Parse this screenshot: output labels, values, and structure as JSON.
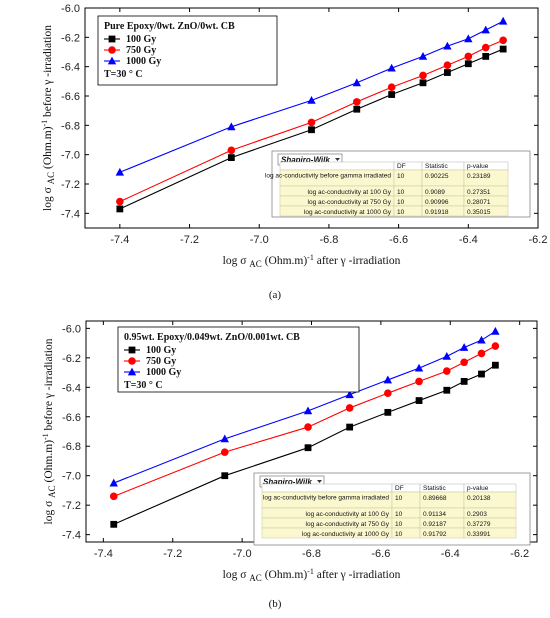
{
  "chart_data": [
    {
      "type": "line",
      "caption": "(a)",
      "xlabel": "log σ AC (Ohm.m)-1 after γ -irradiation",
      "ylabel": "log σ AC (Ohm.m)-1 before γ -irradiation",
      "xlim": [
        -7.5,
        -6.2
      ],
      "ylim": [
        -7.5,
        -6.0
      ],
      "xticks": [
        "-7.4",
        "-7.2",
        "-7.0",
        "-6.8",
        "-6.6",
        "-6.4",
        "-6.2"
      ],
      "yticks": [
        "-6.0",
        "-6.2",
        "-6.4",
        "-6.6",
        "-6.8",
        "-7.0",
        "-7.2",
        "-7.4"
      ],
      "legend": {
        "title": "Pure Epoxy/0wt. ZnO/0wt. CB",
        "note": "T=30 ° C",
        "placement": "top-left"
      },
      "series": [
        {
          "name": "100 Gy",
          "color": "#000000",
          "marker": "square",
          "x": [
            -7.4,
            -7.08,
            -6.85,
            -6.72,
            -6.62,
            -6.53,
            -6.46,
            -6.4,
            -6.35,
            -6.3
          ],
          "y": [
            -7.37,
            -7.02,
            -6.83,
            -6.69,
            -6.59,
            -6.51,
            -6.44,
            -6.38,
            -6.33,
            -6.28
          ]
        },
        {
          "name": "750 Gy",
          "color": "#ff0000",
          "marker": "circle",
          "x": [
            -7.4,
            -7.08,
            -6.85,
            -6.72,
            -6.62,
            -6.53,
            -6.46,
            -6.4,
            -6.35,
            -6.3
          ],
          "y": [
            -7.32,
            -6.97,
            -6.78,
            -6.64,
            -6.54,
            -6.46,
            -6.39,
            -6.33,
            -6.27,
            -6.22
          ]
        },
        {
          "name": "1000 Gy",
          "color": "#0000ff",
          "marker": "triangle",
          "x": [
            -7.4,
            -7.08,
            -6.85,
            -6.72,
            -6.62,
            -6.53,
            -6.46,
            -6.4,
            -6.35,
            -6.3
          ],
          "y": [
            -7.12,
            -6.81,
            -6.63,
            -6.51,
            -6.41,
            -6.33,
            -6.26,
            -6.21,
            -6.15,
            -6.09
          ]
        }
      ],
      "shapiro_wilk": {
        "title": "Shapiro-Wilk",
        "headers": [
          "",
          "DF",
          "Statistic",
          "p-value"
        ],
        "rows": [
          [
            "log ac-conductivity before gamma irradiated",
            "10",
            "0.90225",
            "0.23189"
          ],
          [
            "log ac-conductivity  at 100 Gy",
            "10",
            "0.9089",
            "0.27351"
          ],
          [
            "log ac-conductivity  at 750 Gy",
            "10",
            "0.90996",
            "0.28071"
          ],
          [
            "log ac-conductivity  at 1000 Gy",
            "10",
            "0.91918",
            "0.35015"
          ]
        ]
      }
    },
    {
      "type": "line",
      "caption": "(b)",
      "xlabel": "log σ AC (Ohm.m)-1 after γ -irradiation",
      "ylabel": "log σ AC (Ohm.m)-1 before γ -irradiation",
      "xlim": [
        -7.45,
        -6.15
      ],
      "ylim": [
        -7.45,
        -5.95
      ],
      "xticks": [
        "-7.4",
        "-7.2",
        "-7.0",
        "-6.8",
        "-6.6",
        "-6.4",
        "-6.2"
      ],
      "yticks": [
        "-6.0",
        "-6.2",
        "-6.4",
        "-6.6",
        "-6.8",
        "-7.0",
        "-7.2",
        "-7.4"
      ],
      "legend": {
        "title": "0.95wt. Epoxy/0.049wt. ZnO/0.001wt. CB",
        "note": "T=30 ° C",
        "placement": "top-left"
      },
      "series": [
        {
          "name": "100 Gy",
          "color": "#000000",
          "marker": "square",
          "x": [
            -7.37,
            -7.05,
            -6.81,
            -6.69,
            -6.58,
            -6.49,
            -6.41,
            -6.36,
            -6.31,
            -6.27
          ],
          "y": [
            -7.33,
            -7.0,
            -6.81,
            -6.67,
            -6.57,
            -6.49,
            -6.42,
            -6.36,
            -6.31,
            -6.25
          ]
        },
        {
          "name": "750 Gy",
          "color": "#ff0000",
          "marker": "circle",
          "x": [
            -7.37,
            -7.05,
            -6.81,
            -6.69,
            -6.58,
            -6.49,
            -6.41,
            -6.36,
            -6.31,
            -6.27
          ],
          "y": [
            -7.14,
            -6.84,
            -6.67,
            -6.54,
            -6.44,
            -6.36,
            -6.29,
            -6.23,
            -6.17,
            -6.12
          ]
        },
        {
          "name": "1000 Gy",
          "color": "#0000ff",
          "marker": "triangle",
          "x": [
            -7.37,
            -7.05,
            -6.81,
            -6.69,
            -6.58,
            -6.49,
            -6.41,
            -6.36,
            -6.31,
            -6.27
          ],
          "y": [
            -7.05,
            -6.75,
            -6.56,
            -6.45,
            -6.35,
            -6.27,
            -6.19,
            -6.13,
            -6.08,
            -6.02
          ]
        }
      ],
      "shapiro_wilk": {
        "title": "Shapiro-Wilk",
        "headers": [
          "",
          "DF",
          "Statistic",
          "p-value"
        ],
        "rows": [
          [
            "log ac-conductivity before gamma irradiated",
            "10",
            "0.89668",
            "0.20138"
          ],
          [
            "log ac-conductivity  at 100 Gy",
            "10",
            "0.91134",
            "0.2903"
          ],
          [
            "log ac-conductivity  at 750 Gy",
            "10",
            "0.92187",
            "0.37279"
          ],
          [
            "log ac-conductivity  at 1000 Gy",
            "10",
            "0.91792",
            "0.33991"
          ]
        ]
      }
    }
  ]
}
